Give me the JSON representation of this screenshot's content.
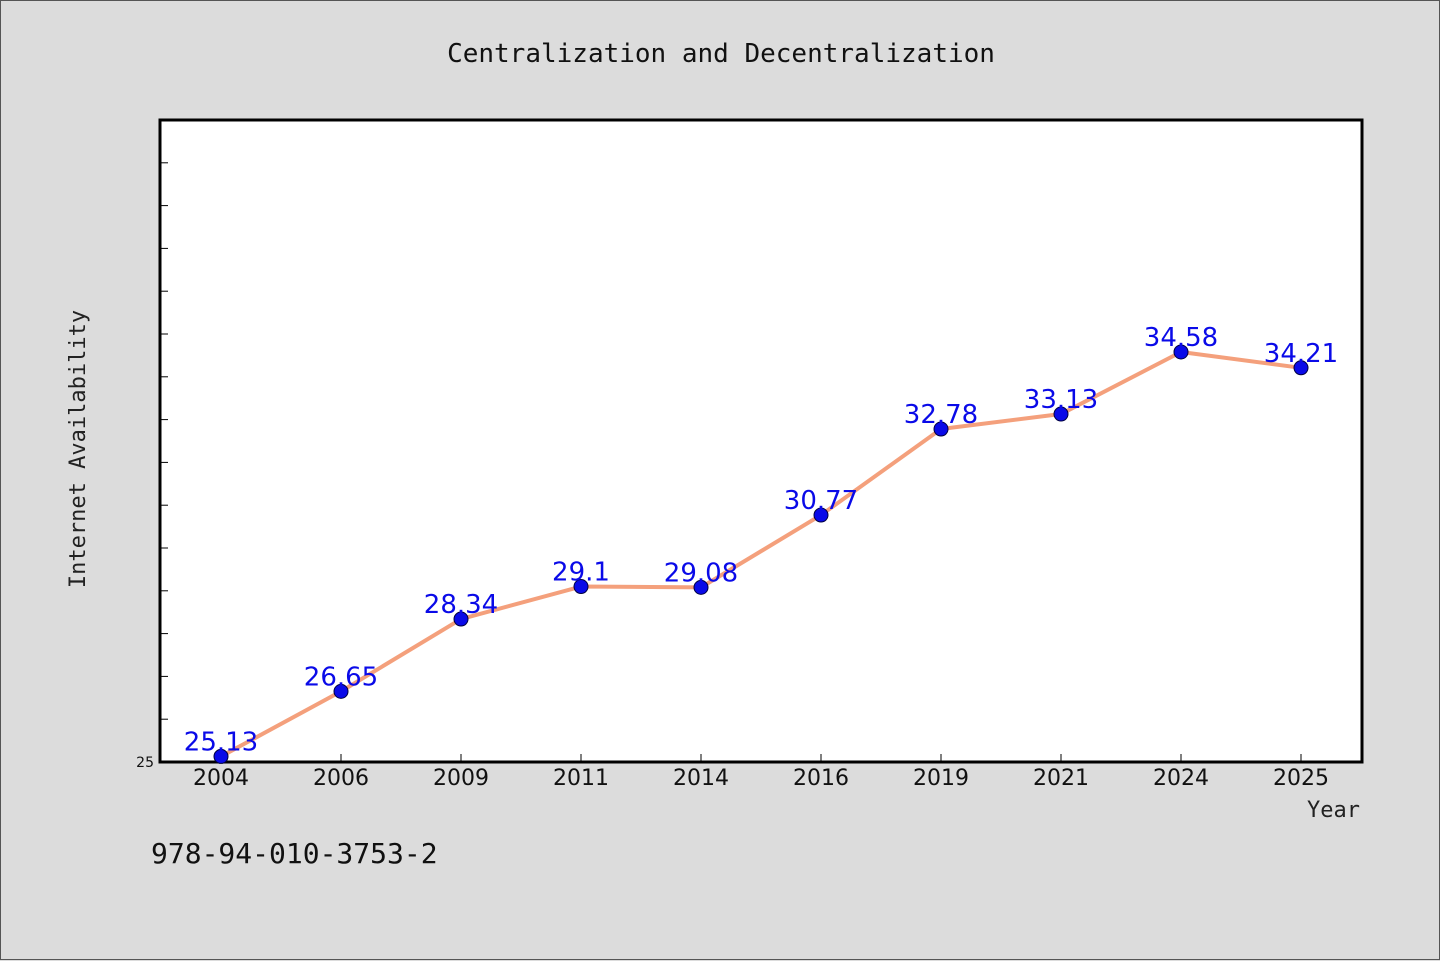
{
  "chart_data": {
    "type": "line",
    "title": "Centralization and Decentralization",
    "xlabel": "Year",
    "ylabel": "Internet Availability",
    "categories": [
      "2004",
      "2006",
      "2009",
      "2011",
      "2014",
      "2016",
      "2019",
      "2021",
      "2024",
      "2025"
    ],
    "series": [
      {
        "values": [
          25.13,
          26.65,
          28.34,
          29.1,
          29.08,
          30.77,
          32.78,
          33.13,
          34.58,
          34.21
        ],
        "data_labels": [
          "25.13",
          "26.65",
          "28.34",
          "29.1",
          "29.08",
          "30.77",
          "32.78",
          "33.13",
          "34.58",
          "34.21"
        ]
      }
    ],
    "ylim": [
      25,
      40
    ],
    "y_tick_labels": [
      "25"
    ],
    "grid": false,
    "legend": "none",
    "colors": {
      "line": "#f4a07c",
      "marker": "#0a0ae8",
      "data_label": "#0a0ae8",
      "plot_background": "#ffffff",
      "page_background": "#dcdcdc"
    }
  },
  "footer": {
    "isbn": "978-94-010-3753-2"
  }
}
